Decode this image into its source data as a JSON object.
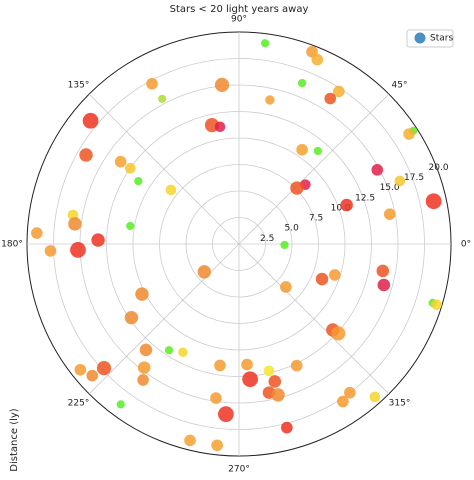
{
  "chart_data": {
    "type": "polar-scatter",
    "title": "Stars < 20 light years away",
    "y_label": "Distance (ly)",
    "rlim": [
      0,
      20
    ],
    "rticks": [
      {
        "value": 2.5,
        "label": "2.5"
      },
      {
        "value": 5,
        "label": "5.0"
      },
      {
        "value": 7.5,
        "label": "7.5"
      },
      {
        "value": 10,
        "label": "10.0"
      },
      {
        "value": 12.5,
        "label": "12.5"
      },
      {
        "value": 15,
        "label": "15.0"
      },
      {
        "value": 17.5,
        "label": "17.5"
      },
      {
        "value": 20,
        "label": "20.0"
      }
    ],
    "thetaticks": [
      {
        "value": 0,
        "label": "0°"
      },
      {
        "value": 45,
        "label": "45°"
      },
      {
        "value": 90,
        "label": "90°"
      },
      {
        "value": 135,
        "label": "135°"
      },
      {
        "value": 180,
        "label": "180°"
      },
      {
        "value": 225,
        "label": "225°"
      },
      {
        "value": 270,
        "label": "270°"
      },
      {
        "value": 315,
        "label": "315°"
      }
    ],
    "grid": true,
    "legend": "upper right",
    "series": [
      {
        "name": "Stars",
        "color": "#4a90c4",
        "x": [
          82.6,
          69.2,
          67,
          118.5,
          96.1,
          117.9,
          68.6,
          56.8,
          57.9,
          77.9,
          140.3,
          102.8,
          99.2,
          33,
          32.9,
          149.8,
          145.2,
          56.2,
          49.7,
          145.1,
          28.2,
          21.4,
          148,
          41.8,
          44,
          141.5,
          12.4,
          19.9,
          11.2,
          170.1,
          173,
          170.6,
          176.9,
          178.4,
          182.1,
          182.1,
          358.8,
          218.7,
          342.1,
          337.1,
          349.4,
          344.2,
          317.5,
          207.3,
          343.1,
          342.9,
          214.4,
          317.5,
          318,
          228.7,
          236.6,
          242.6,
          222.6,
          232.5,
          295.4,
          273.8,
          218.4,
          234.8,
          261.1,
          283.3,
          221.9,
          274.7,
          284.6,
          281.4,
          284.5,
          306.7,
          303.4,
          311.6,
          261.5,
          233.6,
          265.6,
          284.6,
          256,
          263.8
        ],
        "values": [
          19.1,
          19.4,
          18.9,
          17.2,
          15.1,
          15.5,
          16.3,
          17.2,
          16.2,
          13.9,
          18.2,
          11.5,
          11.2,
          19.6,
          19.1,
          16.7,
          13.6,
          10.7,
          11.5,
          12.5,
          14.8,
          16.3,
          11.2,
          8.4,
          7.6,
          8.2,
          18.8,
          10.8,
          14.5,
          15.9,
          15.6,
          10.4,
          19.1,
          13.3,
          15.2,
          17.8,
          4.3,
          4.2,
          9.5,
          8.5,
          13.8,
          14.2,
          6,
          10.3,
          19.1,
          19.5,
          12.3,
          12,
          12.6,
          13.3,
          12,
          11.5,
          17.3,
          14.7,
          12.7,
          11.4,
          19.1,
          15.7,
          11.6,
          12.3,
          18.6,
          12.8,
          13.4,
          14.3,
          14.7,
          17.5,
          17.8,
          19.3,
          14.7,
          18.8,
          16.1,
          17.9,
          19.1,
          19.1
        ],
        "sizes": [
          30,
          60,
          60,
          60,
          90,
          30,
          30,
          60,
          60,
          40,
          110,
          90,
          50,
          30,
          60,
          80,
          60,
          60,
          30,
          50,
          60,
          50,
          30,
          50,
          80,
          50,
          110,
          70,
          60,
          50,
          80,
          30,
          60,
          80,
          110,
          60,
          30,
          80,
          60,
          70,
          70,
          70,
          60,
          80,
          30,
          50,
          80,
          80,
          90,
          70,
          30,
          40,
          90,
          70,
          60,
          60,
          60,
          60,
          60,
          50,
          60,
          110,
          70,
          70,
          80,
          60,
          60,
          50,
          60,
          30,
          110,
          60,
          60,
          60
        ],
        "colors": [
          "#55ee22",
          "#f59a30",
          "#f5b030",
          "#f59a30",
          "#f08a30",
          "#aadd33",
          "#55ee22",
          "#f5b030",
          "#ee5522",
          "#f5a030",
          "#ee3322",
          "#ee5522",
          "#e0204a",
          "#55ee22",
          "#f5b030",
          "#ee5522",
          "#f5a030",
          "#f5a030",
          "#55ee22",
          "#f7c52a",
          "#e0204a",
          "#f7c52a",
          "#55ee22",
          "#e0204a",
          "#ee5522",
          "#f7d52a",
          "#ee3322",
          "#ee3322",
          "#f59a30",
          "#f7d52a",
          "#f08a30",
          "#55ee22",
          "#f59a30",
          "#ee3322",
          "#ee3322",
          "#f59a30",
          "#55ee22",
          "#f08a30",
          "#f59a30",
          "#ee5522",
          "#ee5522",
          "#e0204a",
          "#f59a30",
          "#f08a30",
          "#55ee22",
          "#f7d52a",
          "#f08a30",
          "#ee5522",
          "#f59a30",
          "#f08a30",
          "#55ee22",
          "#f7d52a",
          "#ee5522",
          "#f59a30",
          "#f59a30",
          "#f59a30",
          "#f59a30",
          "#f08a30",
          "#f59a30",
          "#f7e52a",
          "#f08a30",
          "#ee3322",
          "#ee5522",
          "#ee5522",
          "#f08a30",
          "#f59a30",
          "#f59a30",
          "#f7d52a",
          "#f59a30",
          "#55ee22",
          "#ee3322",
          "#ee3322",
          "#f5a030",
          "#f5a030"
        ]
      }
    ]
  }
}
